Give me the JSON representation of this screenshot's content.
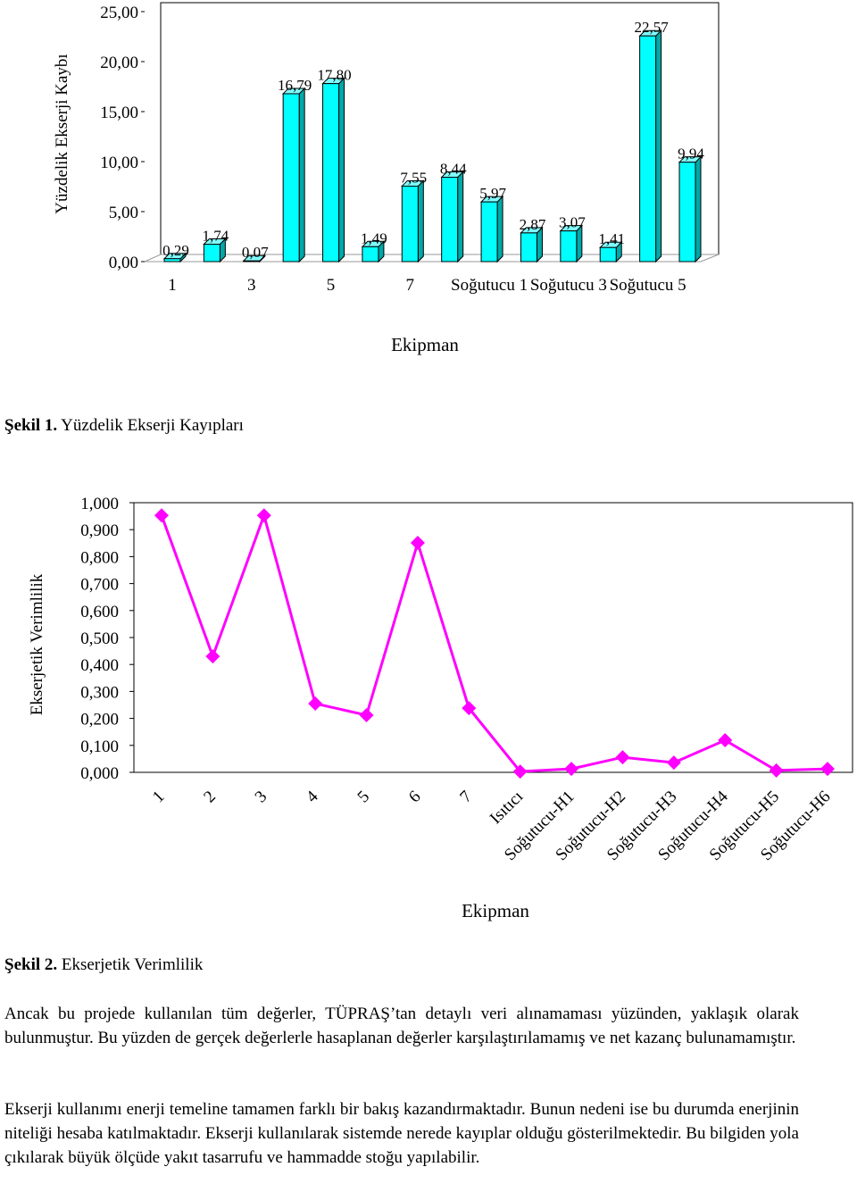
{
  "chart_data": [
    {
      "type": "bar3d",
      "ylabel": "Yüzdelik Ekserji Kaybı",
      "xlabel": "Ekipman",
      "categories": [
        "1",
        null,
        "3",
        null,
        "5",
        null,
        "7",
        null,
        "Soğutucu 1",
        null,
        "Soğutucu 3",
        null,
        "Soğutucu 5",
        null
      ],
      "values": [
        0.29,
        1.74,
        0.07,
        16.79,
        17.8,
        1.49,
        7.55,
        8.44,
        5.97,
        2.87,
        3.07,
        1.41,
        22.57,
        9.94
      ],
      "value_labels": [
        "0,29",
        "1,74",
        "0,07",
        "16,79",
        "17,80",
        "1,49",
        "7,55",
        "8,44",
        "5,97",
        "2,87",
        "3,07",
        "1,41",
        "22,57",
        "9,94"
      ],
      "color": "#00ffff",
      "ylim": [
        0,
        25
      ],
      "yticks": [
        {
          "value": 0,
          "label": "0,00"
        },
        {
          "value": 5,
          "label": "5,00"
        },
        {
          "value": 10,
          "label": "10,00"
        },
        {
          "value": 15,
          "label": "15,00"
        },
        {
          "value": 20,
          "label": "20,00"
        },
        {
          "value": 25,
          "label": "25,00"
        }
      ]
    },
    {
      "type": "line",
      "ylabel": "Ekserjetik Verimlilik",
      "xlabel": "Ekipman",
      "categories": [
        "1",
        "2",
        "3",
        "4",
        "5",
        "6",
        "7",
        "Isıtıcı",
        "Soğutucu-H1",
        "Soğutucu-H2",
        "Soğutucu-H3",
        "Soğutucu-H4",
        "Soğutucu-H5",
        "Soğutucu-H6"
      ],
      "values": [
        0.953,
        0.43,
        0.953,
        0.255,
        0.212,
        0.851,
        0.238,
        0.003,
        0.013,
        0.056,
        0.036,
        0.119,
        0.007,
        0.013
      ],
      "color": "#ff00ff",
      "ylim": [
        0,
        1
      ],
      "yticks": [
        {
          "value": 0,
          "label": "0,000"
        },
        {
          "value": 0.1,
          "label": "0,100"
        },
        {
          "value": 0.2,
          "label": "0,200"
        },
        {
          "value": 0.3,
          "label": "0,300"
        },
        {
          "value": 0.4,
          "label": "0,400"
        },
        {
          "value": 0.5,
          "label": "0,500"
        },
        {
          "value": 0.6,
          "label": "0,600"
        },
        {
          "value": 0.7,
          "label": "0,700"
        },
        {
          "value": 0.8,
          "label": "0,800"
        },
        {
          "value": 0.9,
          "label": "0,900"
        },
        {
          "value": 1,
          "label": "1,000"
        }
      ]
    }
  ],
  "captions": [
    {
      "label": "Şekil 1.",
      "text": "Yüzdelik Ekserji Kayıpları"
    },
    {
      "label": "Şekil 2.",
      "text": "Ekserjetik Verimlilik"
    }
  ],
  "paragraphs": [
    "Ancak bu projede kullanılan tüm değerler, TÜPRAŞ’tan  detaylı veri alınamaması yüzünden, yaklaşık olarak bulunmuştur. Bu yüzden de gerçek değerlerle hasaplanan değerler karşılaştırılamamış ve net kazanç bulunamamıştır.",
    "Ekserji kullanımı enerji temeline tamamen farklı bir bakış kazandırmaktadır. Bunun nedeni ise bu durumda enerjinin niteliği hesaba katılmaktadır. Ekserji kullanılarak sistemde nerede kayıplar olduğu gösterilmektedir. Bu bilgiden yola çıkılarak büyük ölçüde yakıt tasarrufu ve hammadde stoğu yapılabilir."
  ]
}
